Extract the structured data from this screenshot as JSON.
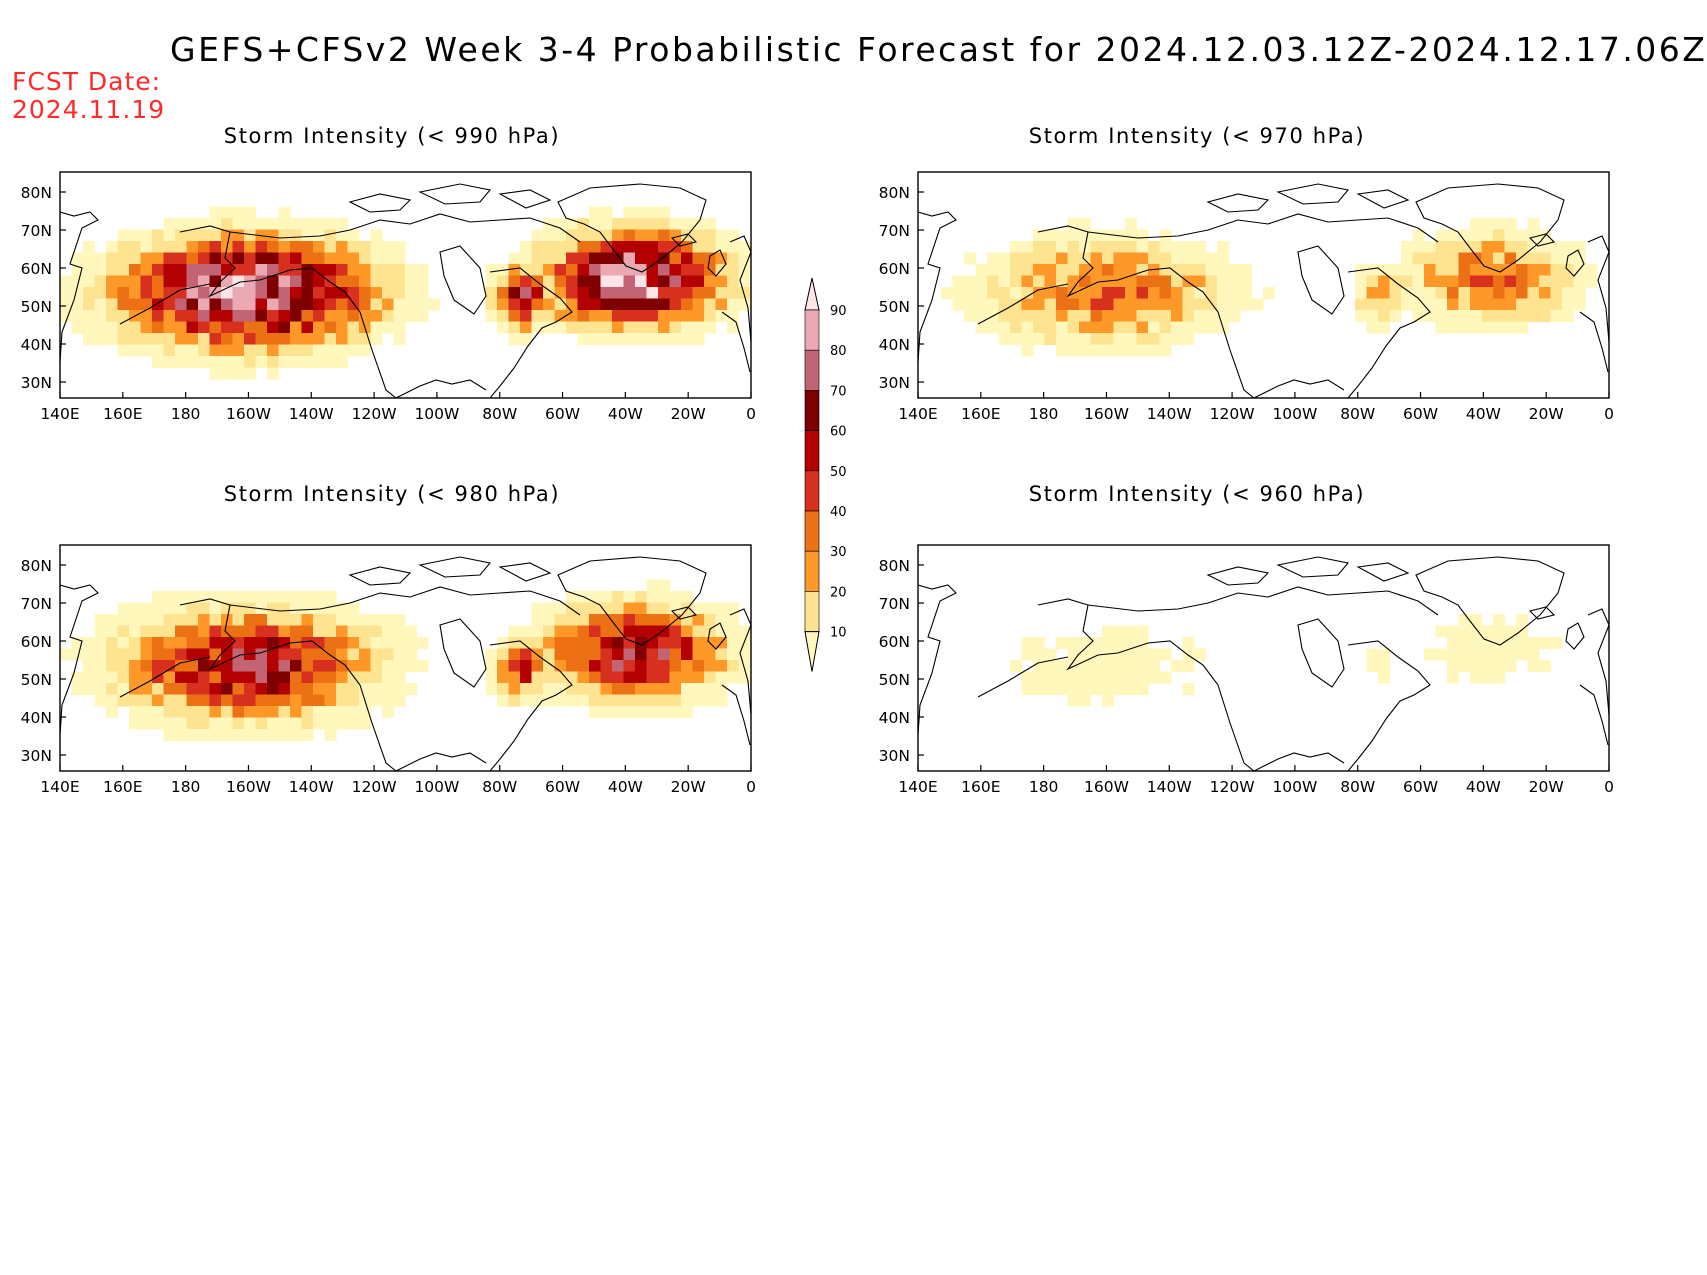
{
  "title": "GEFS+CFSv2 Week 3-4 Probabilistic Forecast for 2024.12.03.12Z-2024.12.17.06Z",
  "forecast_date_label": "FCST Date:",
  "forecast_date": "2024.11.19",
  "x_ticks": [
    "140E",
    "160E",
    "180",
    "160W",
    "140W",
    "120W",
    "100W",
    "80W",
    "60W",
    "40W",
    "20W",
    "0"
  ],
  "y_ticks": [
    "80N",
    "70N",
    "60N",
    "50N",
    "40N",
    "30N"
  ],
  "colorbar": {
    "levels": [
      "10",
      "20",
      "30",
      "40",
      "50",
      "60",
      "70",
      "80",
      "90"
    ],
    "colors": [
      "#fff7bc",
      "#fee391",
      "#fe9929",
      "#ec7014",
      "#d7301f",
      "#b30000",
      "#7f0000",
      "#c26473",
      "#e9a8b2",
      "#ffe4e8"
    ]
  },
  "panels": [
    {
      "title": "Storm Intensity (< 990 hPa)"
    },
    {
      "title": "Storm Intensity (< 970 hPa)"
    },
    {
      "title": "Storm Intensity (< 980 hPa)"
    },
    {
      "title": "Storm Intensity (< 960 hPa)"
    }
  ]
}
